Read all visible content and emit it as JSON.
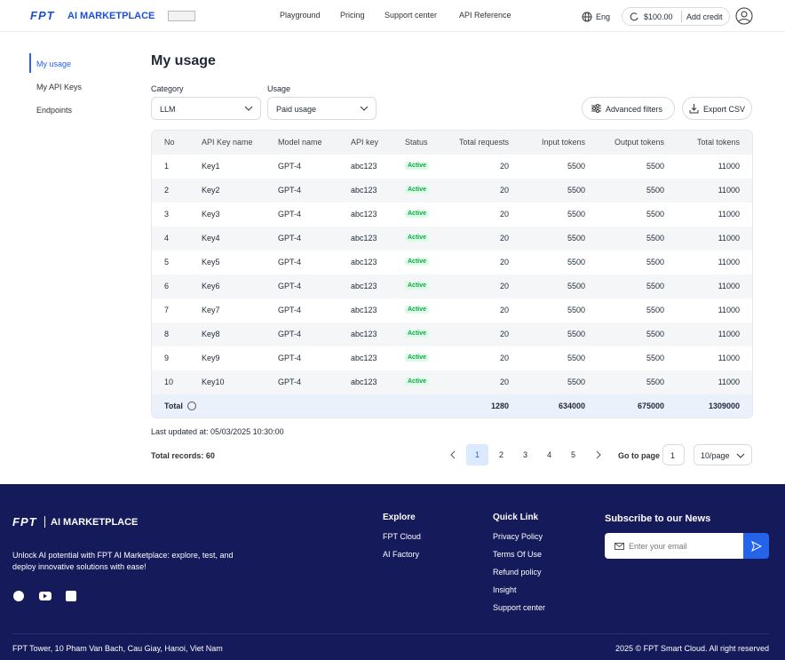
{
  "header": {
    "logo_mark": "FPT",
    "logo_text": "AI MARKETPLACE",
    "nav": [
      "Playground",
      "Pricing",
      "Support center",
      "API Reference"
    ],
    "language": "Eng",
    "balance": "$100.00",
    "add_credit": "Add credit"
  },
  "sidebar": [
    "My usage",
    "My API Keys",
    "Endpoints"
  ],
  "main": {
    "title": "My usage",
    "filters": {
      "category_label": "Category",
      "category_value": "LLM",
      "usage_label": "Usage",
      "usage_value": "Paid usage",
      "advanced": "Advanced filters",
      "export": "Export CSV"
    },
    "table": {
      "columns": [
        "No",
        "API Key name",
        "Model name",
        "API key",
        "Status",
        "Total requests",
        "Input tokens",
        "Output tokens",
        "Total tokens"
      ],
      "rows": [
        [
          1,
          "Key1",
          "GPT-4",
          "abc123",
          "Active",
          20,
          5500,
          5500,
          11000
        ],
        [
          2,
          "Key2",
          "GPT-4",
          "abc123",
          "Active",
          20,
          5500,
          5500,
          11000
        ],
        [
          3,
          "Key3",
          "GPT-4",
          "abc123",
          "Active",
          20,
          5500,
          5500,
          11000
        ],
        [
          4,
          "Key4",
          "GPT-4",
          "abc123",
          "Active",
          20,
          5500,
          5500,
          11000
        ],
        [
          5,
          "Key5",
          "GPT-4",
          "abc123",
          "Active",
          20,
          5500,
          5500,
          11000
        ],
        [
          6,
          "Key6",
          "GPT-4",
          "abc123",
          "Active",
          20,
          5500,
          5500,
          11000
        ],
        [
          7,
          "Key7",
          "GPT-4",
          "abc123",
          "Active",
          20,
          5500,
          5500,
          11000
        ],
        [
          8,
          "Key8",
          "GPT-4",
          "abc123",
          "Active",
          20,
          5500,
          5500,
          11000
        ],
        [
          9,
          "Key9",
          "GPT-4",
          "abc123",
          "Active",
          20,
          5500,
          5500,
          11000
        ],
        [
          10,
          "Key10",
          "GPT-4",
          "abc123",
          "Active",
          20,
          5500,
          5500,
          11000
        ]
      ],
      "total": {
        "label": "Total",
        "values": [
          1280,
          634000,
          675000,
          1309000
        ]
      }
    },
    "last_updated": "Last updated at: 05/03/2025 10:30:00",
    "total_records": "Total records: 60",
    "pagination": {
      "pages": [
        1,
        2,
        3,
        4,
        5
      ],
      "go_to": "Go to page",
      "page_input": 1,
      "per_page": "10/page"
    }
  },
  "footer": {
    "logo_mark": "FPT",
    "logo_text": "AI MARKETPLACE",
    "description": "Unlock AI potential with FPT AI Marketplace: explore, test, and deploy innovative solutions with ease!",
    "explore": {
      "title": "Explore",
      "links": [
        "FPT Cloud",
        "AI Factory"
      ]
    },
    "quick_link": {
      "title": "Quick Link",
      "links": [
        "Privacy Policy",
        "Terms Of Use",
        "Refund policy",
        "Insight",
        "Support center"
      ]
    },
    "subscribe": {
      "title": "Subscribe to our News",
      "placeholder": "Enter your email"
    },
    "address": "FPT Tower, 10 Pham Van Bach, Cau Giay, Hanoi, Viet Nam",
    "copyright": "2025 © FPT Smart Cloud. All right reserved"
  }
}
